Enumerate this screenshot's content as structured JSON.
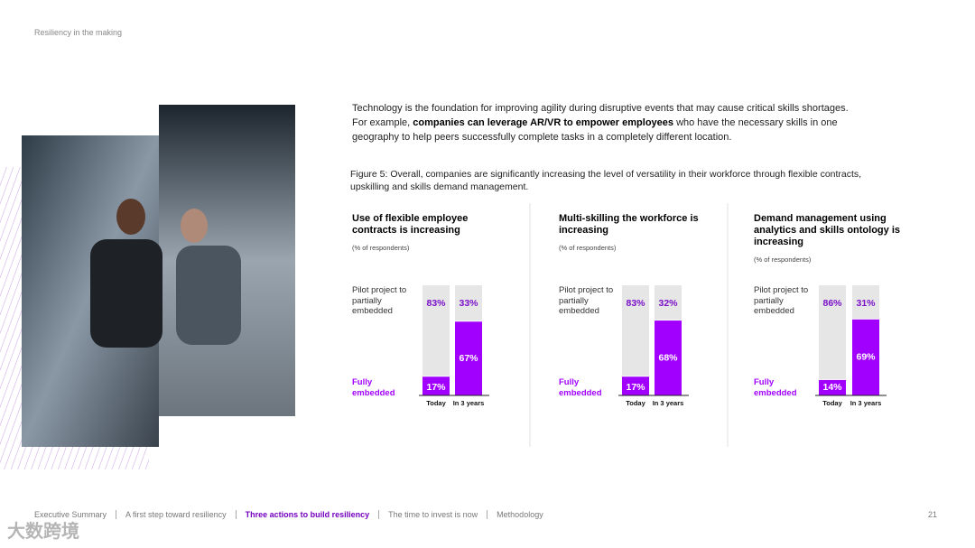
{
  "header": {
    "title": "Resiliency in the making"
  },
  "body": [
    "Technology is the foundation for improving agility during disruptive events that may cause critical skills shortages. For example, ",
    "companies can leverage AR/VR to empower employees",
    " who have the necessary skills in one geography to help peers successfully complete tasks in a completely different location."
  ],
  "figure_caption": "Figure 5: Overall, companies are significantly increasing the level of versatility in their workforce through flexible contracts, upskilling and skills demand management.",
  "chart_data": [
    {
      "type": "bar",
      "stacked": true,
      "title": "Use of flexible employee contracts is increasing",
      "subtitle": "(% of respondents)",
      "categories": [
        "Today",
        "In 3 years"
      ],
      "ylim": [
        0,
        100
      ],
      "series": [
        {
          "name": "Fully embedded",
          "color": "#a100ff",
          "values": [
            17,
            67
          ],
          "value_labels": [
            "17%",
            "67%"
          ]
        },
        {
          "name": "Pilot project to partially embedded",
          "color": "#e6e6e6",
          "values": [
            83,
            33
          ],
          "value_labels": [
            "83%",
            "33%"
          ]
        }
      ]
    },
    {
      "type": "bar",
      "stacked": true,
      "title": "Multi-skilling the workforce is increasing",
      "subtitle": "(% of respondents)",
      "categories": [
        "Today",
        "In 3 years"
      ],
      "ylim": [
        0,
        100
      ],
      "series": [
        {
          "name": "Fully embedded",
          "color": "#a100ff",
          "values": [
            17,
            68
          ],
          "value_labels": [
            "17%",
            "68%"
          ]
        },
        {
          "name": "Pilot project to partially embedded",
          "color": "#e6e6e6",
          "values": [
            83,
            32
          ],
          "value_labels": [
            "83%",
            "32%"
          ]
        }
      ]
    },
    {
      "type": "bar",
      "stacked": true,
      "title": "Demand management using analytics and skills ontology is increasing",
      "subtitle": "(% of respondents)",
      "categories": [
        "Today",
        "In 3 years"
      ],
      "ylim": [
        0,
        100
      ],
      "series": [
        {
          "name": "Fully embedded",
          "color": "#a100ff",
          "values": [
            14,
            69
          ],
          "value_labels": [
            "14%",
            "69%"
          ]
        },
        {
          "name": "Pilot project to partially embedded",
          "color": "#e6e6e6",
          "values": [
            86,
            31
          ],
          "value_labels": [
            "86%",
            "31%"
          ]
        }
      ]
    }
  ],
  "footer": {
    "nav": [
      "Executive Summary",
      "A first step toward resiliency",
      "Three actions to build resiliency",
      "The time to invest is now",
      "Methodology"
    ],
    "active": 2,
    "page": "21"
  },
  "watermark": "大数跨境"
}
